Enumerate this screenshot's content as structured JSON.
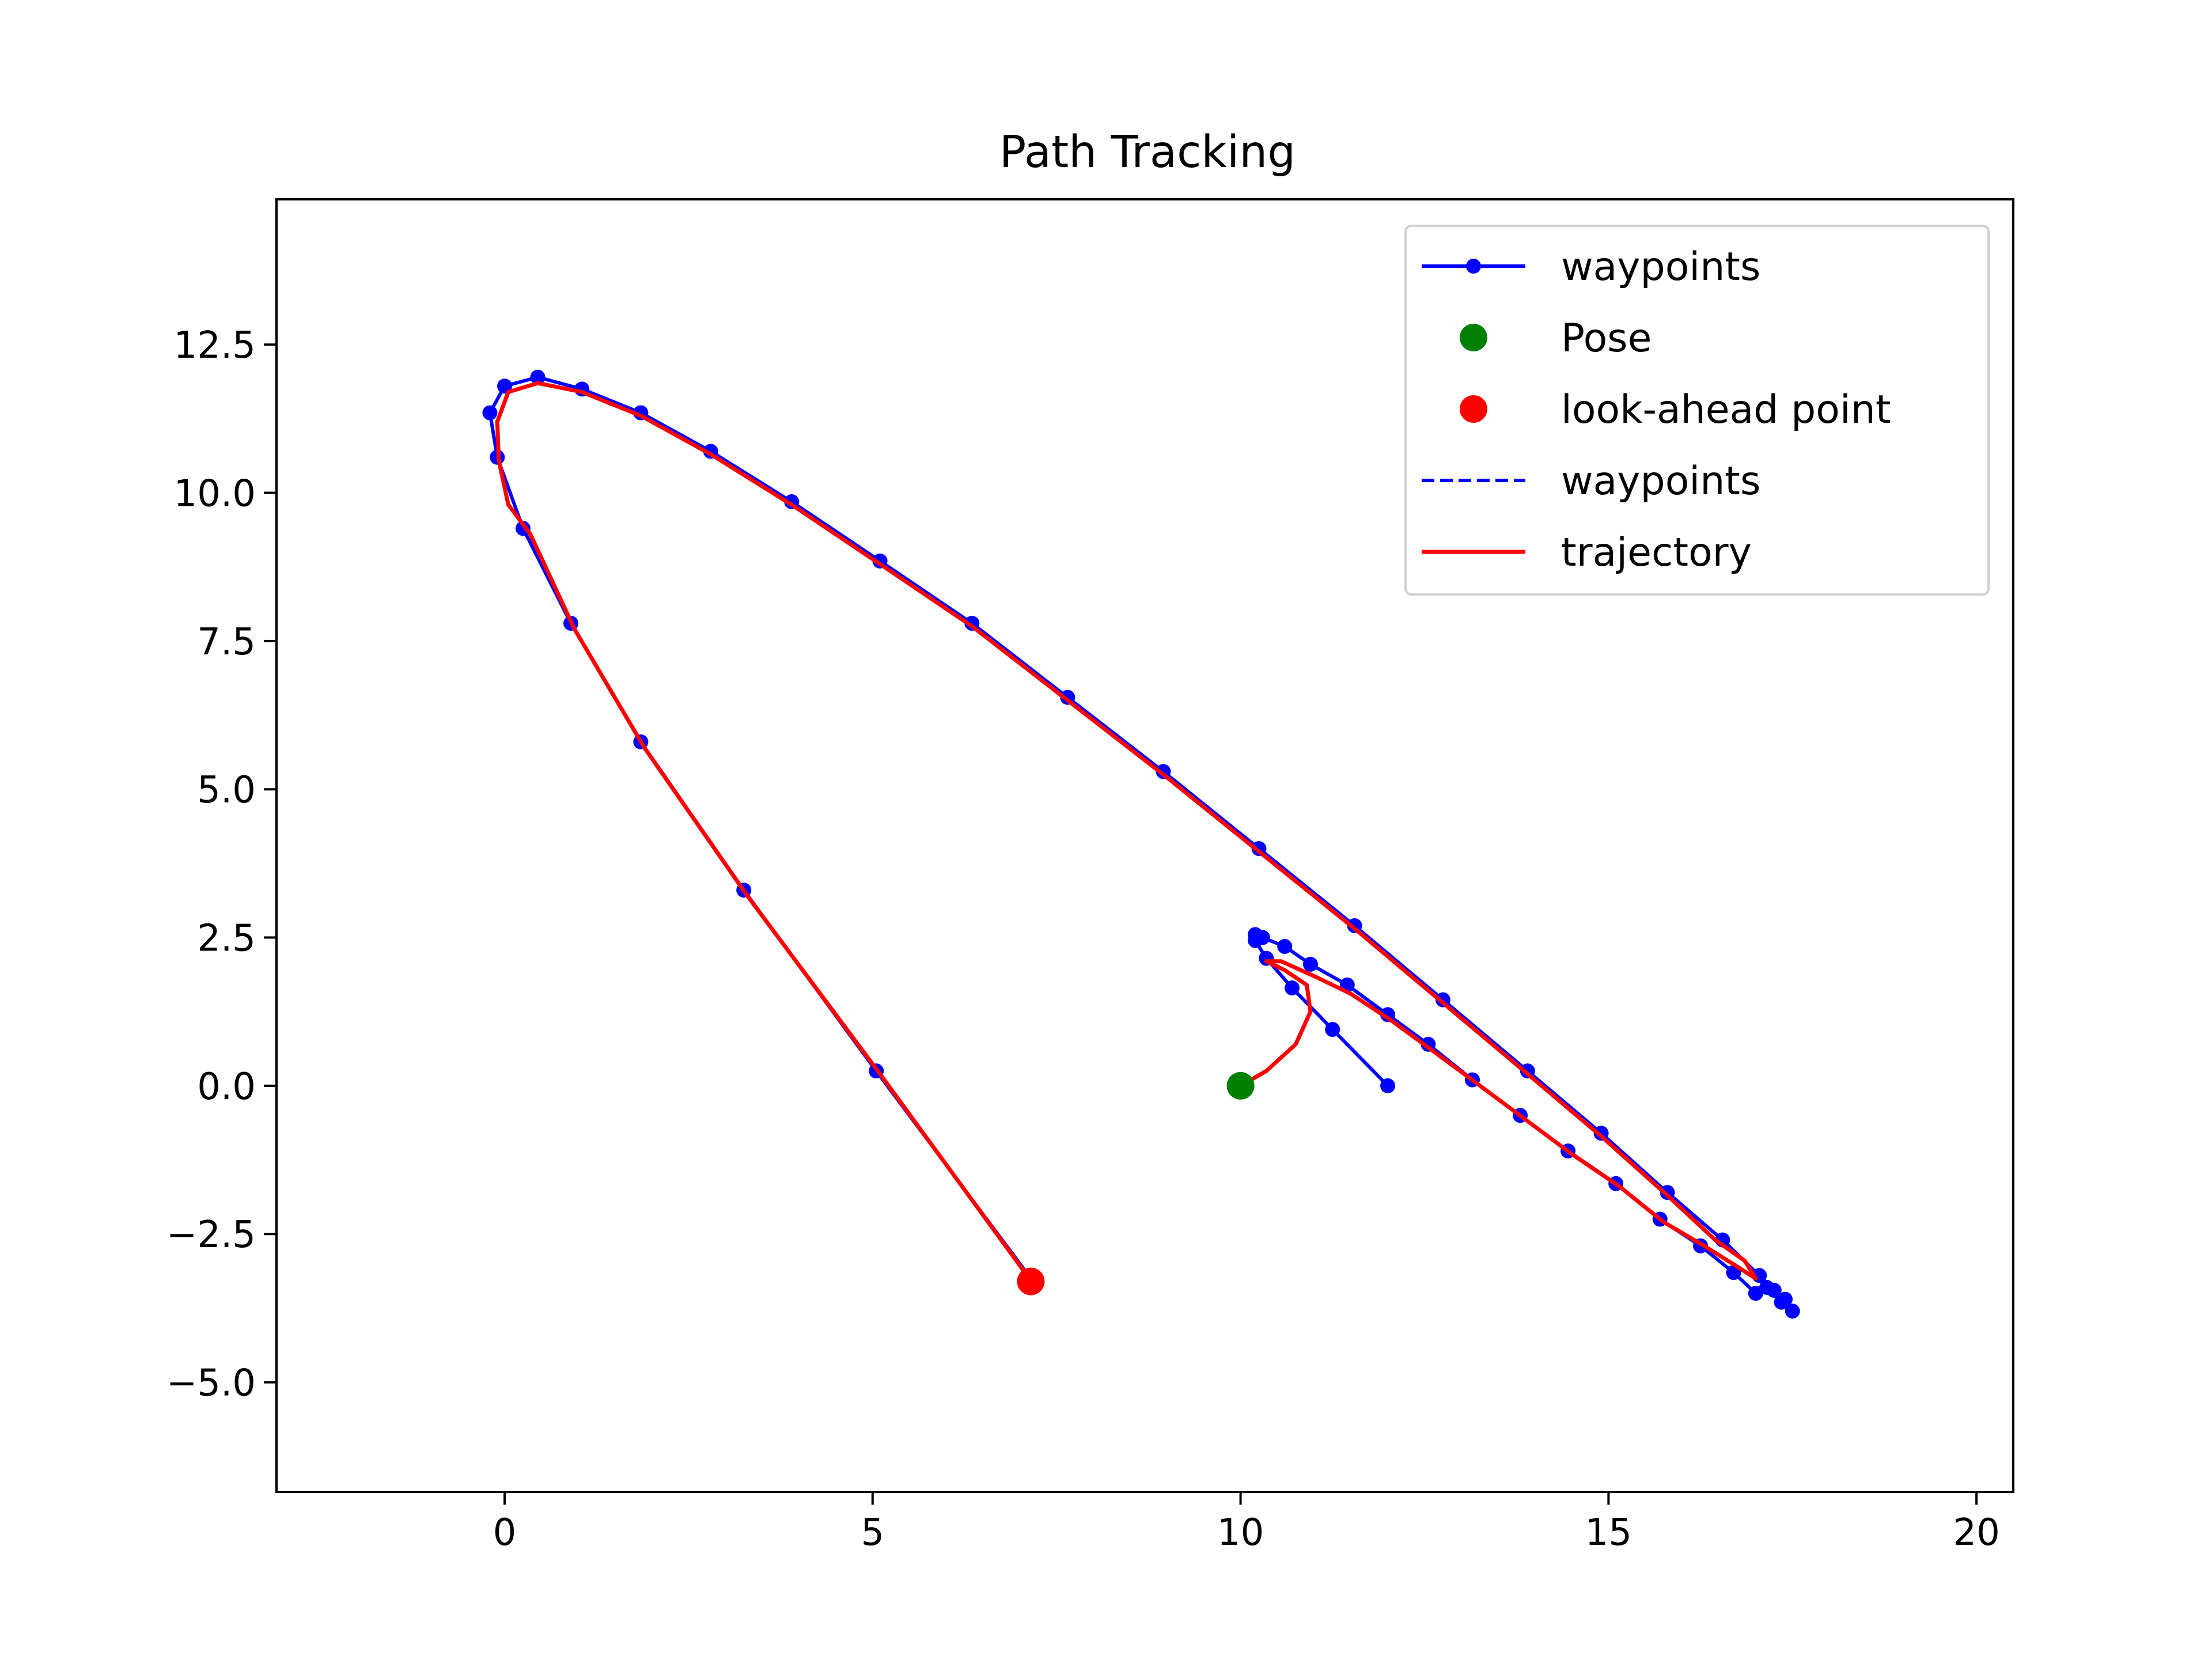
{
  "chart_data": {
    "type": "line",
    "title": "Path Tracking",
    "xlabel": "",
    "ylabel": "",
    "xlim": [
      -3.1,
      20.5
    ],
    "ylim": [
      -6.85,
      14.95
    ],
    "xticks": [
      0,
      5,
      10,
      15,
      20
    ],
    "xtick_labels": [
      "0",
      "5",
      "10",
      "15",
      "20"
    ],
    "yticks": [
      -5.0,
      -2.5,
      0.0,
      2.5,
      5.0,
      7.5,
      10.0,
      12.5
    ],
    "ytick_labels": [
      "−5.0",
      "−2.5",
      "0.0",
      "2.5",
      "5.0",
      "7.5",
      "10.0",
      "12.5"
    ],
    "grid": false,
    "legend_position": "top-right",
    "colors": {
      "waypoints": "#0000ff",
      "pose": "#008000",
      "lookahead": "#ff0000",
      "trajectory": "#ff0000"
    },
    "legend": [
      {
        "label": "waypoints",
        "style": "line-marker",
        "color": "#0000ff"
      },
      {
        "label": "Pose",
        "style": "marker",
        "color": "#008000"
      },
      {
        "label": "look-ahead point",
        "style": "marker",
        "color": "#ff0000"
      },
      {
        "label": "waypoints",
        "style": "dashed",
        "color": "#0000ff"
      },
      {
        "label": "trajectory",
        "style": "line",
        "color": "#ff0000"
      }
    ],
    "series": [
      {
        "name": "waypoints",
        "style": "line-marker",
        "color": "#0000ff",
        "x": [
          12.0,
          11.25,
          10.7,
          10.35,
          10.2,
          10.2,
          10.3,
          10.6,
          10.95,
          11.45,
          12.0,
          12.55,
          13.15,
          13.8,
          14.45,
          15.1,
          15.7,
          16.25,
          16.7,
          17.0,
          17.15,
          17.35,
          17.5,
          17.4,
          17.25,
          17.05,
          16.55,
          15.8,
          14.9,
          13.9,
          12.75,
          11.55,
          10.25,
          8.95,
          7.65,
          6.35,
          5.1,
          3.9,
          2.8,
          1.85,
          1.05,
          0.45,
          0.0,
          -0.2,
          -0.1,
          0.25,
          0.9,
          1.85,
          3.25,
          5.05,
          7.15
        ],
        "y": [
          0.0,
          0.95,
          1.65,
          2.15,
          2.45,
          2.55,
          2.5,
          2.35,
          2.05,
          1.7,
          1.2,
          0.7,
          0.1,
          -0.5,
          -1.1,
          -1.65,
          -2.25,
          -2.7,
          -3.15,
          -3.5,
          -3.4,
          -3.65,
          -3.8,
          -3.6,
          -3.45,
          -3.2,
          -2.6,
          -1.8,
          -0.8,
          0.25,
          1.45,
          2.7,
          4.0,
          5.3,
          6.55,
          7.8,
          8.85,
          9.85,
          10.7,
          11.35,
          11.75,
          11.95,
          11.8,
          11.35,
          10.6,
          9.4,
          7.8,
          5.8,
          3.3,
          0.25,
          -3.25
        ]
      },
      {
        "name": "trajectory",
        "style": "line",
        "color": "#ff0000",
        "x": [
          10.0,
          10.35,
          10.75,
          10.95,
          10.9,
          10.6,
          10.35,
          10.55,
          11.0,
          11.5,
          12.05,
          12.6,
          13.2,
          13.85,
          14.5,
          15.15,
          15.75,
          16.3,
          16.75,
          17.0,
          16.85,
          16.45,
          15.8,
          14.9,
          13.9,
          12.75,
          11.55,
          10.25,
          8.95,
          7.65,
          6.35,
          5.1,
          3.9,
          2.8,
          1.85,
          1.05,
          0.45,
          0.05,
          -0.1,
          -0.08,
          0.05,
          0.35,
          0.95,
          1.9,
          3.3,
          5.1,
          7.1
        ],
        "y": [
          0.0,
          0.25,
          0.7,
          1.25,
          1.7,
          1.95,
          2.1,
          2.1,
          1.85,
          1.55,
          1.1,
          0.6,
          0.05,
          -0.55,
          -1.15,
          -1.7,
          -2.3,
          -2.7,
          -3.05,
          -3.25,
          -2.95,
          -2.6,
          -1.85,
          -0.85,
          0.2,
          1.4,
          2.65,
          3.95,
          5.25,
          6.5,
          7.75,
          8.8,
          9.8,
          10.65,
          11.3,
          11.7,
          11.85,
          11.7,
          11.2,
          10.55,
          9.8,
          9.3,
          7.7,
          5.7,
          3.2,
          0.2,
          -3.2
        ]
      }
    ],
    "points": [
      {
        "name": "Pose",
        "x": 10.0,
        "y": 0.0,
        "color": "#008000"
      },
      {
        "name": "look-ahead point",
        "x": 7.15,
        "y": -3.3,
        "color": "#ff0000"
      }
    ]
  }
}
